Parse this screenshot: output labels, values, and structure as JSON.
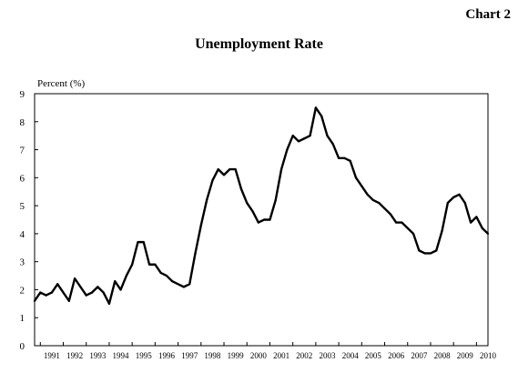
{
  "chart_number": "Chart 2",
  "chart_data": {
    "type": "line",
    "title": "Unemployment Rate",
    "ylabel": "Percent (%)",
    "xlabel": "",
    "ylim": [
      0,
      9
    ],
    "yticks": [
      "0",
      "1",
      "2",
      "3",
      "4",
      "5",
      "6",
      "7",
      "8",
      "9"
    ],
    "xticks": [
      "1991",
      "1992",
      "1993",
      "1994",
      "1995",
      "1996",
      "1997",
      "1998",
      "1999",
      "2000",
      "2001",
      "2002",
      "2003",
      "2004",
      "2005",
      "2006",
      "2007",
      "2008",
      "2009",
      "2010"
    ],
    "x_range": [
      1990.75,
      2010.5
    ],
    "grid": false,
    "line_color": "#000000",
    "series": [
      {
        "x": [
          1990.75,
          1991.0,
          1991.25,
          1991.5,
          1991.75,
          1992.0,
          1992.25,
          1992.5,
          1992.75,
          1993.0,
          1993.25,
          1993.5,
          1993.75,
          1994.0,
          1994.25,
          1994.5,
          1994.75,
          1995.0,
          1995.25,
          1995.5,
          1995.75,
          1996.0,
          1996.25,
          1996.5,
          1996.75,
          1997.0,
          1997.25,
          1997.5,
          1997.75,
          1998.0,
          1998.25,
          1998.5,
          1998.75,
          1999.0,
          1999.25,
          1999.5,
          1999.75,
          2000.0,
          2000.25,
          2000.5,
          2000.75,
          2001.0,
          2001.25,
          2001.5,
          2001.75,
          2002.0,
          2002.25,
          2002.5,
          2002.75,
          2003.0,
          2003.25,
          2003.5,
          2003.75,
          2004.0,
          2004.25,
          2004.5,
          2004.75,
          2005.0,
          2005.25,
          2005.5,
          2005.75,
          2006.0,
          2006.25,
          2006.5,
          2006.75,
          2007.0,
          2007.25,
          2007.5,
          2007.75,
          2008.0,
          2008.25,
          2008.5,
          2008.75,
          2009.0,
          2009.25,
          2009.5,
          2009.75,
          2010.0,
          2010.25,
          2010.5
        ],
        "values": [
          1.6,
          1.9,
          1.8,
          1.9,
          2.2,
          1.9,
          1.6,
          2.4,
          2.1,
          1.8,
          1.9,
          2.1,
          1.9,
          1.5,
          2.3,
          2.0,
          2.5,
          2.9,
          3.7,
          3.7,
          2.9,
          2.9,
          2.6,
          2.5,
          2.3,
          2.2,
          2.1,
          2.2,
          3.3,
          4.3,
          5.2,
          5.9,
          6.3,
          6.1,
          6.3,
          6.3,
          5.6,
          5.1,
          4.8,
          4.4,
          4.5,
          4.5,
          5.2,
          6.3,
          7.0,
          7.5,
          7.3,
          7.4,
          7.5,
          8.5,
          8.2,
          7.5,
          7.2,
          6.7,
          6.7,
          6.6,
          6.0,
          5.7,
          5.4,
          5.2,
          5.1,
          4.9,
          4.7,
          4.4,
          4.4,
          4.2,
          4.0,
          3.4,
          3.3,
          3.3,
          3.4,
          4.1,
          5.1,
          5.3,
          5.4,
          5.1,
          4.4,
          4.6,
          4.2,
          4.0
        ]
      }
    ]
  }
}
